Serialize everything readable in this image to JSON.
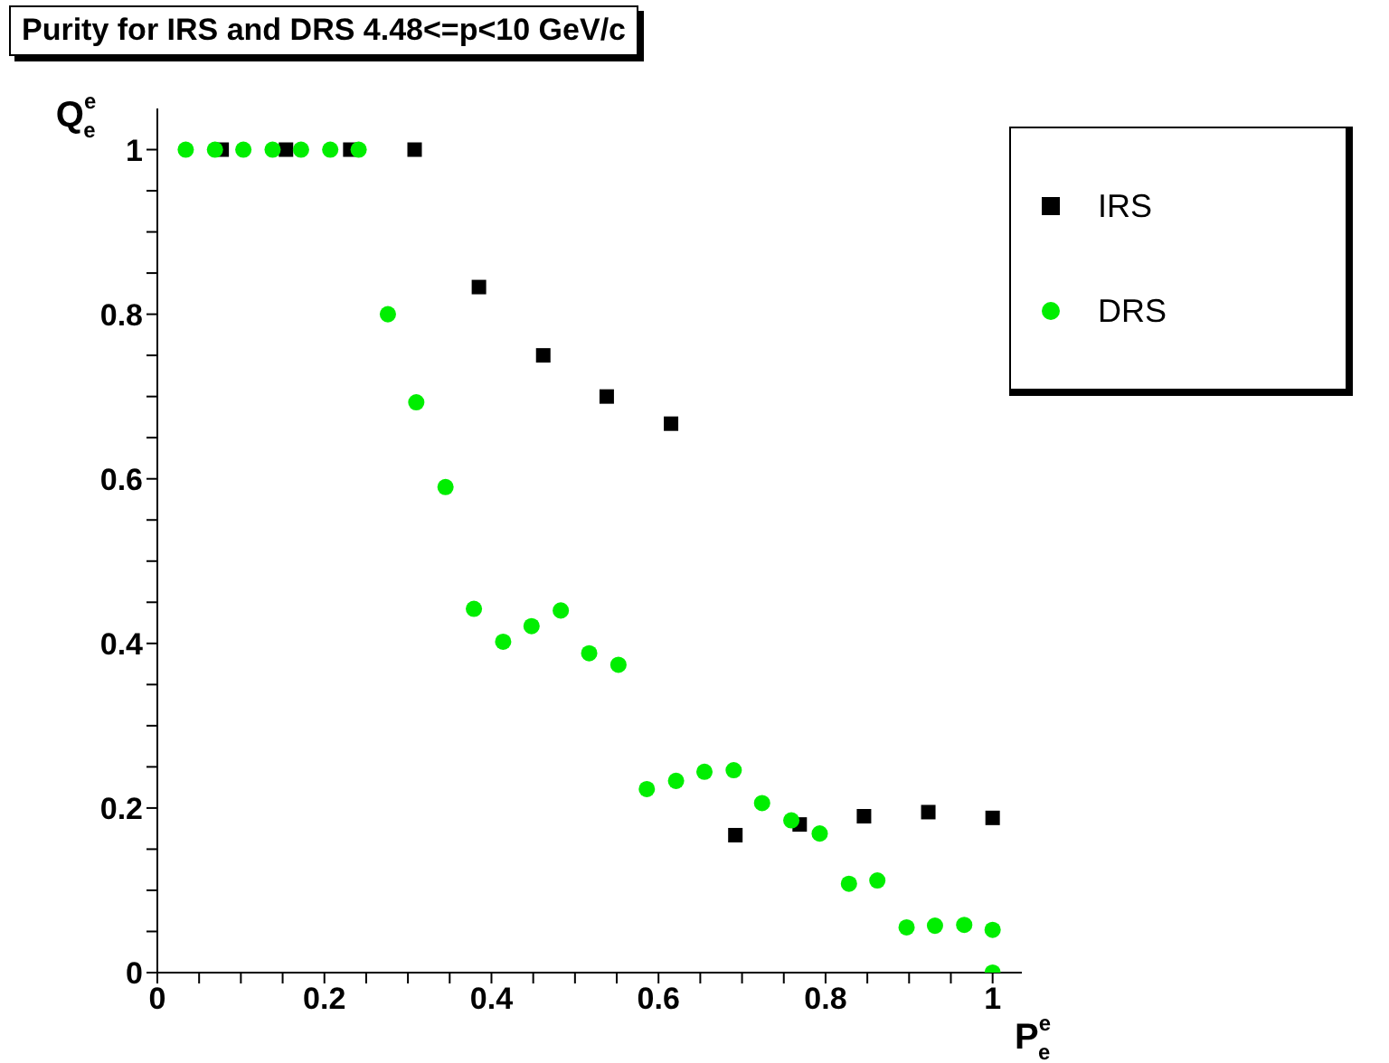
{
  "chart_data": {
    "type": "scatter",
    "title": "Purity for IRS and DRS 4.48<=p<10 GeV/c",
    "xlabel": "P$^{e}$$_{e}$",
    "ylabel": "Q$^{e}$$_{e}$",
    "xlim": [
      0,
      1.035
    ],
    "ylim": [
      0,
      1.05
    ],
    "xticks": [
      0,
      {
        "value": 0.05,
        "label": null
      },
      {
        "value": 0.1,
        "label": null
      },
      {
        "value": 0.15,
        "label": null
      },
      0.2,
      {
        "value": 0.25,
        "label": null
      },
      {
        "value": 0.3,
        "label": null
      },
      {
        "value": 0.35,
        "label": null
      },
      0.4,
      {
        "value": 0.45,
        "label": null
      },
      {
        "value": 0.5,
        "label": null
      },
      {
        "value": 0.55,
        "label": null
      },
      0.6,
      {
        "value": 0.65,
        "label": null
      },
      {
        "value": 0.7,
        "label": null
      },
      {
        "value": 0.75,
        "label": null
      },
      0.8,
      {
        "value": 0.85,
        "label": null
      },
      {
        "value": 0.9,
        "label": null
      },
      {
        "value": 0.95,
        "label": null
      },
      1
    ],
    "yticks": [
      0,
      {
        "value": 0.05,
        "label": null
      },
      {
        "value": 0.1,
        "label": null
      },
      {
        "value": 0.15,
        "label": null
      },
      0.2,
      {
        "value": 0.25,
        "label": null
      },
      {
        "value": 0.3,
        "label": null
      },
      {
        "value": 0.35,
        "label": null
      },
      0.4,
      {
        "value": 0.45,
        "label": null
      },
      {
        "value": 0.5,
        "label": null
      },
      {
        "value": 0.55,
        "label": null
      },
      0.6,
      {
        "value": 0.65,
        "label": null
      },
      {
        "value": 0.7,
        "label": null
      },
      {
        "value": 0.75,
        "label": null
      },
      0.8,
      {
        "value": 0.85,
        "label": null
      },
      {
        "value": 0.9,
        "label": null
      },
      {
        "value": 0.95,
        "label": null
      },
      1
    ],
    "grid": false,
    "legend": "top right",
    "series": [
      {
        "name": "IRS",
        "color": "#000000",
        "marker": "square",
        "x": [
          0.077,
          0.154,
          0.231,
          0.308,
          0.385,
          0.462,
          0.538,
          0.615,
          0.692,
          0.769,
          0.846,
          0.923,
          1
        ],
        "values": [
          1,
          1,
          1,
          1,
          0.833,
          0.75,
          0.7,
          0.667,
          0.167,
          0.18,
          0.19,
          0.195,
          0.188
        ]
      },
      {
        "name": "DRS",
        "color": "#00ee00",
        "marker": "circle",
        "x": [
          0.034,
          0.069,
          0.103,
          0.138,
          0.172,
          0.207,
          0.241,
          0.276,
          0.31,
          0.345,
          0.379,
          0.414,
          0.448,
          0.483,
          0.517,
          0.552,
          0.586,
          0.621,
          0.655,
          0.69,
          0.724,
          0.759,
          0.793,
          0.828,
          0.862,
          0.897,
          0.931,
          0.966,
          1,
          1
        ],
        "values": [
          1,
          1,
          1,
          1,
          1,
          1,
          1,
          0.8,
          0.693,
          0.59,
          0.442,
          0.402,
          0.421,
          0.44,
          0.388,
          0.374,
          0.223,
          0.233,
          0.244,
          0.246,
          0.206,
          0.185,
          0.169,
          0.108,
          0.112,
          0.055,
          0.057,
          0.058,
          0.052,
          0
        ]
      }
    ]
  }
}
